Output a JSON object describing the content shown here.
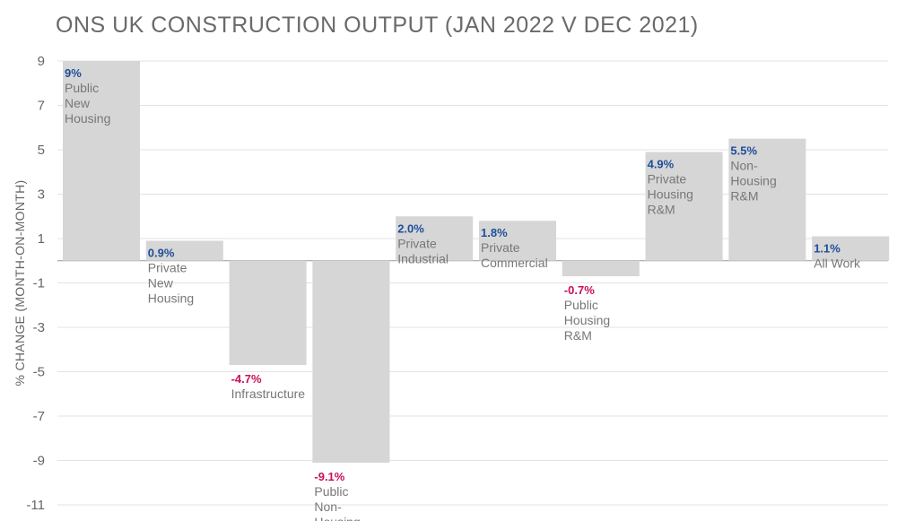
{
  "chart_data": {
    "type": "bar",
    "title": "ONS UK CONSTRUCTION OUTPUT (JAN 2022 V DEC 2021)",
    "ylabel": "% CHANGE (MONTH-ON-MONTH)",
    "xlabel": "",
    "ylim": [
      -11,
      9
    ],
    "yticks": [
      "9",
      "7",
      "5",
      "3",
      "1",
      "-1",
      "-3",
      "-5",
      "-7",
      "-9",
      "-11"
    ],
    "grid": true,
    "categories": [
      "Public New Housing",
      "Private New Housing",
      "Infrastructure",
      "Public Non-Housing",
      "Private Industrial",
      "Private Commercial",
      "Public Housing R&M",
      "Private Housing R&M",
      "Non-Housing R&M",
      "All Work"
    ],
    "category_label_lines": [
      [
        "Public",
        "New",
        "Housing"
      ],
      [
        "Private",
        "New",
        "Housing"
      ],
      [
        "Infrastructure"
      ],
      [
        "Public",
        "Non-",
        "Housing"
      ],
      [
        "Private",
        "Industrial"
      ],
      [
        "Private",
        "Commercial"
      ],
      [
        "Public",
        "Housing",
        "R&M"
      ],
      [
        "Private",
        "Housing",
        "R&M"
      ],
      [
        "Non-",
        "Housing",
        "R&M"
      ],
      [
        "All Work"
      ]
    ],
    "values": [
      9,
      0.9,
      -4.7,
      -9.1,
      2.0,
      1.8,
      -0.7,
      4.9,
      5.5,
      1.1
    ],
    "value_labels": [
      "9%",
      "0.9%",
      "-4.7%",
      "-9.1%",
      "2.0%",
      "1.8%",
      "-0.7%",
      "4.9%",
      "5.5%",
      "1.1%"
    ],
    "colors": {
      "bar": "#d6d6d6",
      "positive_label": "#1f4e9a",
      "negative_label": "#c8105a",
      "grid": "#e3e3e3",
      "axis": "#999999"
    }
  }
}
